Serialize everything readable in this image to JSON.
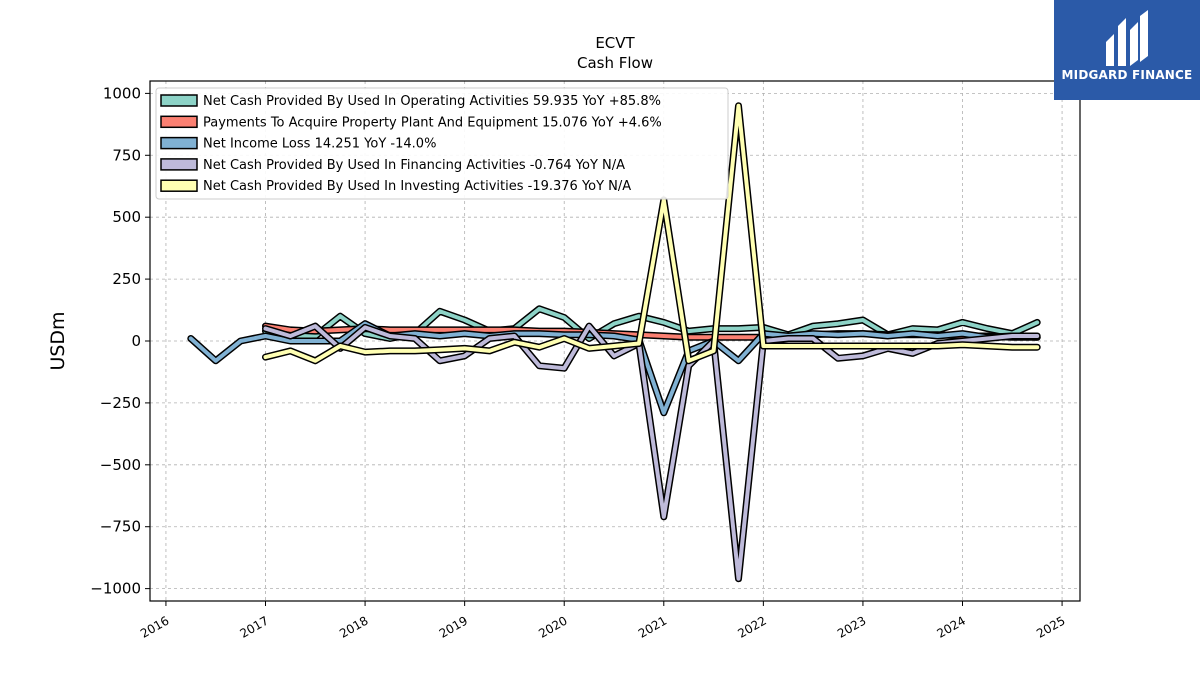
{
  "logo": {
    "text": "MIDGARD FINANCE",
    "color": "#2b5aa8"
  },
  "chart_data": {
    "type": "line",
    "title": "ECVT",
    "subtitle": "Cash Flow",
    "xlabel": "",
    "ylabel": "USDm",
    "xlim": [
      2015.84,
      2025.18
    ],
    "ylim": [
      -1050,
      1050
    ],
    "x_ticks": [
      2016,
      2017,
      2018,
      2019,
      2020,
      2021,
      2022,
      2023,
      2024,
      2025
    ],
    "y_ticks": [
      1000,
      750,
      500,
      250,
      0,
      -250,
      -500,
      -750,
      -1000
    ],
    "y_tick_labels": [
      "1000",
      "750",
      "500",
      "250",
      "0",
      "−250",
      "−500",
      "−750",
      "−1000"
    ],
    "grid": true,
    "legend_position": "top-left",
    "series": [
      {
        "name": "Net Cash Provided By Used In Operating Activities",
        "legend_label": "Net Cash Provided By Used In Operating Activities  59.935 YoY +85.8%",
        "color": "#8dd3c7",
        "x": [
          2017.0,
          2017.25,
          2017.5,
          2017.75,
          2018.0,
          2018.25,
          2018.5,
          2018.75,
          2019.0,
          2019.25,
          2019.5,
          2019.75,
          2020.0,
          2020.25,
          2020.5,
          2020.75,
          2021.0,
          2021.25,
          2021.5,
          2021.75,
          2022.0,
          2022.25,
          2022.5,
          2022.75,
          2023.0,
          2023.25,
          2023.5,
          2023.75,
          2024.0,
          2024.25,
          2024.5,
          2024.75
        ],
        "values": [
          40,
          20,
          20,
          100,
          30,
          10,
          30,
          120,
          85,
          40,
          50,
          130,
          95,
          10,
          70,
          100,
          75,
          40,
          50,
          50,
          55,
          25,
          60,
          70,
          85,
          25,
          50,
          45,
          75,
          50,
          30,
          75
        ]
      },
      {
        "name": "Payments To Acquire Property Plant And Equipment",
        "legend_label": "Payments To Acquire Property Plant And Equipment  15.076 YoY +4.6%",
        "color": "#fb8072",
        "x": [
          2017.0,
          2017.25,
          2017.5,
          2017.75,
          2018.0,
          2018.25,
          2018.5,
          2018.75,
          2019.0,
          2019.25,
          2019.5,
          2019.75,
          2020.0,
          2020.25,
          2020.5,
          2020.75,
          2021.0,
          2021.25,
          2021.5,
          2021.75,
          2022.0,
          2022.25,
          2022.5,
          2022.75,
          2023.0,
          2023.25,
          2023.5,
          2023.75,
          2024.0,
          2024.25,
          2024.5,
          2024.75
        ],
        "values": [
          60,
          45,
          40,
          45,
          50,
          45,
          45,
          45,
          45,
          45,
          45,
          40,
          40,
          35,
          30,
          25,
          20,
          15,
          15,
          15,
          15,
          20,
          25,
          30,
          30,
          25,
          25,
          25,
          20,
          20,
          15,
          15
        ]
      },
      {
        "name": "Net Income Loss",
        "legend_label": "Net Income Loss  14.251 YoY -14.0%",
        "color": "#80b1d3",
        "x": [
          2016.25,
          2016.5,
          2016.75,
          2017.0,
          2017.25,
          2017.5,
          2017.75,
          2018.0,
          2018.25,
          2018.5,
          2018.75,
          2019.0,
          2019.25,
          2019.5,
          2019.75,
          2020.0,
          2020.25,
          2020.5,
          2020.75,
          2021.0,
          2021.25,
          2021.5,
          2021.75,
          2022.0,
          2022.25,
          2022.5,
          2022.75,
          2023.0,
          2023.25,
          2023.5,
          2023.75,
          2024.0,
          2024.25,
          2024.5,
          2024.75
        ],
        "values": [
          10,
          -80,
          0,
          20,
          0,
          0,
          0,
          70,
          20,
          30,
          20,
          30,
          20,
          30,
          30,
          25,
          25,
          20,
          5,
          -290,
          -40,
          0,
          -80,
          30,
          20,
          30,
          25,
          30,
          20,
          30,
          20,
          30,
          15,
          20,
          15
        ]
      },
      {
        "name": "Net Cash Provided By Used In Financing Activities",
        "legend_label": "Net Cash Provided By Used In Financing Activities  -0.764 YoY N/A",
        "color": "#bebada",
        "x": [
          2017.0,
          2017.25,
          2017.5,
          2017.75,
          2018.0,
          2018.25,
          2018.5,
          2018.75,
          2019.0,
          2019.25,
          2019.5,
          2019.75,
          2020.0,
          2020.25,
          2020.5,
          2020.75,
          2021.0,
          2021.25,
          2021.5,
          2021.75,
          2022.0,
          2022.25,
          2022.5,
          2022.75,
          2023.0,
          2023.25,
          2023.5,
          2023.75,
          2024.0,
          2024.25,
          2024.5,
          2024.75
        ],
        "values": [
          50,
          20,
          60,
          -30,
          55,
          20,
          10,
          -80,
          -60,
          10,
          20,
          -100,
          -110,
          60,
          -60,
          -10,
          -710,
          -100,
          0,
          -960,
          0,
          10,
          10,
          -70,
          -60,
          -30,
          -50,
          -10,
          0,
          10,
          20,
          20
        ]
      },
      {
        "name": "Net Cash Provided By Used In Investing Activities",
        "legend_label": "Net Cash Provided By Used In Investing Activities  -19.376 YoY N/A",
        "color": "#ffffb3",
        "x": [
          2017.0,
          2017.25,
          2017.5,
          2017.75,
          2018.0,
          2018.25,
          2018.5,
          2018.75,
          2019.0,
          2019.25,
          2019.5,
          2019.75,
          2020.0,
          2020.25,
          2020.5,
          2020.75,
          2021.0,
          2021.25,
          2021.5,
          2021.75,
          2022.0,
          2022.25,
          2022.5,
          2022.75,
          2023.0,
          2023.25,
          2023.5,
          2023.75,
          2024.0,
          2024.25,
          2024.5,
          2024.75
        ],
        "values": [
          -65,
          -40,
          -80,
          -20,
          -45,
          -40,
          -40,
          -35,
          -30,
          -40,
          -5,
          -25,
          10,
          -30,
          -20,
          -10,
          570,
          -80,
          -40,
          950,
          -20,
          -20,
          -20,
          -20,
          -20,
          -20,
          -20,
          -20,
          -15,
          -20,
          -25,
          -25
        ]
      }
    ]
  }
}
